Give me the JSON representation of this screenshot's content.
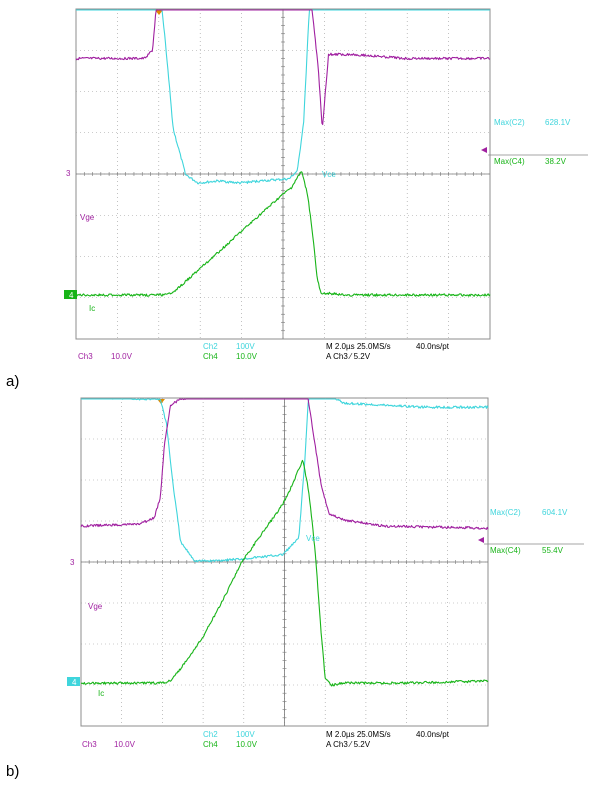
{
  "colors": {
    "ch2": "#3fd5dc",
    "ch3": "#a020a0",
    "ch4": "#18b418",
    "grid": "#9a9a9a",
    "trigger": "#e08a00"
  },
  "chart_data": [
    {
      "type": "line",
      "panel_label": "a)",
      "grid": true,
      "x_unit": "µs",
      "xlim": [
        -9.9,
        10.1
      ],
      "series": [
        {
          "name": "Vce",
          "channel": "Ch2",
          "scale_per_div": "100V",
          "x": [
            -10,
            -6.2,
            -6.0,
            -5.6,
            -5.2,
            -4.6,
            -4.0,
            -3.0,
            -2.0,
            -1.0,
            0.4,
            0.8,
            1.1,
            1.45,
            1.7,
            1.9,
            2.2,
            3.5,
            6.0,
            10.1
          ],
          "y": [
            6.05,
            5.9,
            5.4,
            3.5,
            1.3,
            0.2,
            0.0,
            0.05,
            0.0,
            0.05,
            0.1,
            0.3,
            1.5,
            5.0,
            8.5,
            10.9,
            6.5,
            5.4,
            5.4,
            5.35
          ]
        },
        {
          "name": "Vge",
          "channel": "Ch3",
          "scale_per_div": "10.0V",
          "x": [
            -10,
            -6.6,
            -6.2,
            -6.1,
            -5.9,
            -5.7,
            -5.2,
            -4.5,
            -3.5,
            -2.0,
            -1.0,
            0.0,
            0.5,
            0.9,
            1.2,
            1.5,
            1.8,
            2.0,
            2.3,
            3.5,
            6.0,
            10.1
          ],
          "y": [
            2.8,
            2.8,
            3.0,
            3.6,
            4.8,
            5.2,
            5.3,
            5.6,
            5.7,
            5.8,
            5.9,
            6.0,
            5.8,
            5.5,
            5.0,
            4.0,
            2.6,
            1.1,
            2.9,
            2.9,
            2.8,
            2.8
          ]
        },
        {
          "name": "Ic",
          "channel": "Ch4",
          "scale_per_div": "10.0V",
          "x": [
            -10,
            -5.5,
            -5.0,
            -4.0,
            -3.0,
            -2.0,
            -1.0,
            0.0,
            0.5,
            0.8,
            1.0,
            1.3,
            1.55,
            1.75,
            1.95,
            2.2,
            3.0,
            6.0,
            10.1
          ],
          "y": [
            0.0,
            0.0,
            0.15,
            0.6,
            1.05,
            1.5,
            1.95,
            2.4,
            2.6,
            2.85,
            3.0,
            2.4,
            1.4,
            0.4,
            0.0,
            0.05,
            0.0,
            0.0,
            0.0
          ]
        }
      ],
      "measurements": [
        {
          "label": "Max(C2)",
          "value": "628.1V"
        },
        {
          "label": "Max(C4)",
          "value": "38.2V"
        }
      ],
      "texts": {
        "vce": "Vce",
        "vge": "Vge",
        "ic": "Ic",
        "ref3": "3",
        "ref4": "4",
        "ch3": "Ch3",
        "ch3_scale": "10.0V",
        "ch2": "Ch2",
        "ch2_scale": "100V",
        "ch4": "Ch4",
        "ch4_scale": "10.0V",
        "timebase": "M 2.0µs 25.0MS/s",
        "record": "40.0ns/pt",
        "trigger": "A  Ch3  ⁄  5.2V"
      }
    },
    {
      "type": "line",
      "panel_label": "b)",
      "grid": true,
      "x_unit": "µs",
      "xlim": [
        -9.9,
        10.1
      ],
      "series": [
        {
          "name": "Vce",
          "channel": "Ch2",
          "scale_per_div": "100V",
          "x": [
            -10,
            -7.0,
            -6.0,
            -5.7,
            -5.4,
            -5.0,
            -4.3,
            -3.5,
            -2.0,
            -1.0,
            0.0,
            0.8,
            1.1,
            1.6,
            2.0,
            2.3,
            3.0,
            5.0,
            7.0,
            10.1
          ],
          "y": [
            4.05,
            4.0,
            4.0,
            3.4,
            2.0,
            0.5,
            0.05,
            0.05,
            0.1,
            0.15,
            0.2,
            0.6,
            2.5,
            6.9,
            6.8,
            4.1,
            3.9,
            3.85,
            3.8,
            3.8
          ]
        },
        {
          "name": "Vge",
          "channel": "Ch3",
          "scale_per_div": "10.0V",
          "x": [
            -10,
            -7.0,
            -6.3,
            -6.0,
            -5.8,
            -5.5,
            -5.0,
            -4.0,
            -3.0,
            -2.0,
            -1.0,
            0.0,
            0.7,
            1.2,
            1.6,
            1.9,
            2.3,
            3.0,
            5.0,
            10.1
          ],
          "y": [
            0.9,
            0.95,
            1.1,
            1.6,
            2.9,
            3.85,
            4.0,
            4.1,
            4.2,
            4.5,
            4.7,
            4.9,
            4.85,
            4.2,
            2.9,
            1.9,
            1.2,
            1.05,
            0.9,
            0.85
          ]
        },
        {
          "name": "Ic",
          "channel": "Ch4",
          "scale_per_div": "10.0V",
          "x": [
            -10,
            -6.0,
            -5.5,
            -5.0,
            -4.0,
            -3.0,
            -2.0,
            -1.0,
            0.0,
            0.5,
            1.0,
            1.3,
            1.6,
            1.9,
            2.1,
            2.4,
            3.0,
            6.0,
            10.1
          ],
          "y": [
            -0.05,
            -0.05,
            0.0,
            0.3,
            1.0,
            1.9,
            2.9,
            3.6,
            4.3,
            4.8,
            5.4,
            4.6,
            3.2,
            1.2,
            0.05,
            -0.1,
            -0.05,
            -0.05,
            0.0
          ]
        }
      ],
      "measurements": [
        {
          "label": "Max(C2)",
          "value": "604.1V"
        },
        {
          "label": "Max(C4)",
          "value": "55.4V"
        }
      ],
      "texts": {
        "vce": "Vce",
        "vge": "Vge",
        "ic": "Ic",
        "ref3": "3",
        "ref4": "4",
        "ch3": "Ch3",
        "ch3_scale": "10.0V",
        "ch2": "Ch2",
        "ch2_scale": "100V",
        "ch4": "Ch4",
        "ch4_scale": "10.0V",
        "timebase": "M 2.0µs 25.0MS/s",
        "record": "40.0ns/pt",
        "trigger": "A  Ch3  ⁄  5.2V"
      }
    }
  ]
}
